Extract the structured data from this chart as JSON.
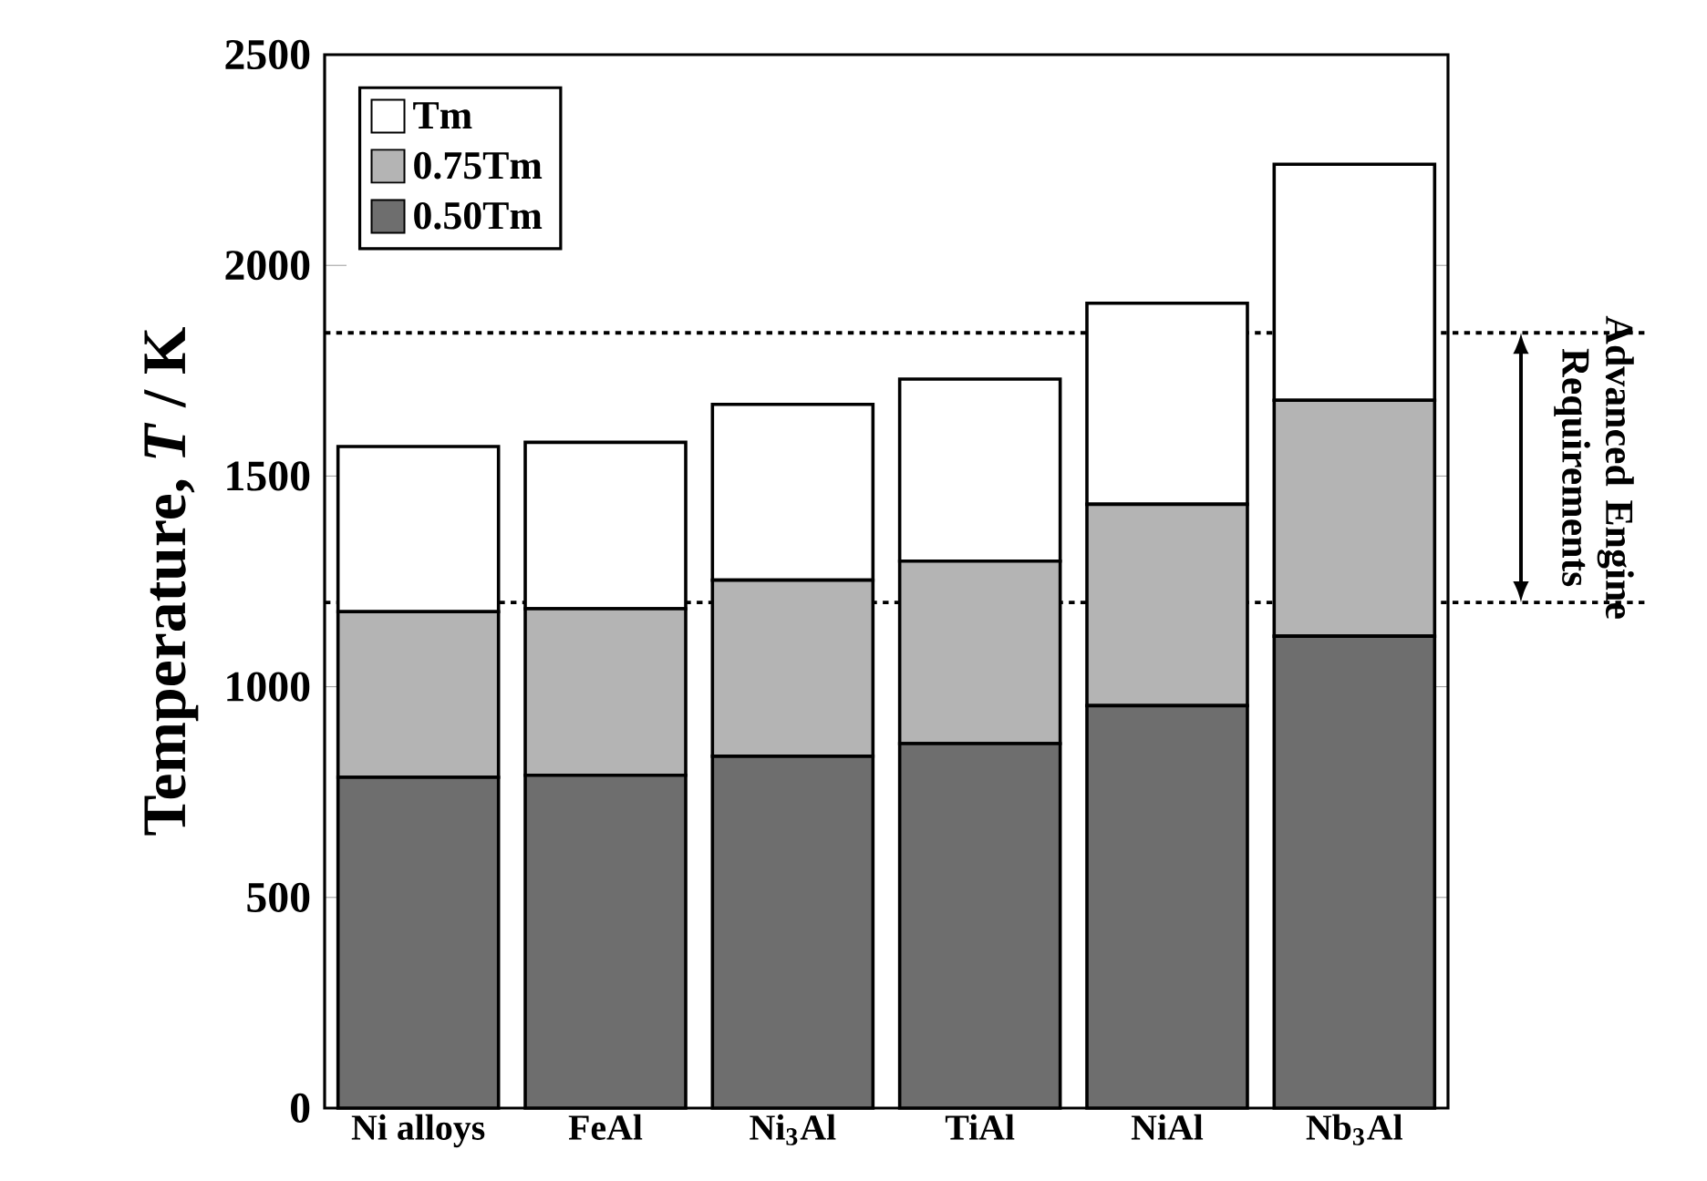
{
  "chart_data": {
    "type": "bar",
    "stacked": true,
    "ylabel": "Temperature, *T* / K",
    "categories": [
      "Ni alloys",
      "FeAl",
      "Ni$_{3}$Al",
      "TiAl",
      "NiAl",
      "Nb$_{3}$Al"
    ],
    "series": [
      {
        "name": "0.50Tm",
        "color": "#6e6e6e",
        "values": [
          785,
          790,
          835,
          865,
          955,
          1120
        ]
      },
      {
        "name": "0.75Tm",
        "color": "#b4b4b4",
        "values": [
          393,
          395,
          418,
          433,
          478,
          560
        ]
      },
      {
        "name": "Tm",
        "color": "#ffffff",
        "values": [
          392,
          395,
          417,
          432,
          477,
          560
        ]
      }
    ],
    "ylim": [
      0,
      2500
    ],
    "yticks": [
      0,
      500,
      1000,
      1500,
      2000,
      2500
    ],
    "legend": "top left",
    "grid": false,
    "ref_lines": [
      {
        "axis": "y",
        "value": 1840,
        "line_style": "dotted"
      },
      {
        "axis": "y",
        "value": 1200,
        "line_style": "dotted"
      }
    ],
    "annotations": [
      "Advanced Engine Requirements"
    ]
  }
}
